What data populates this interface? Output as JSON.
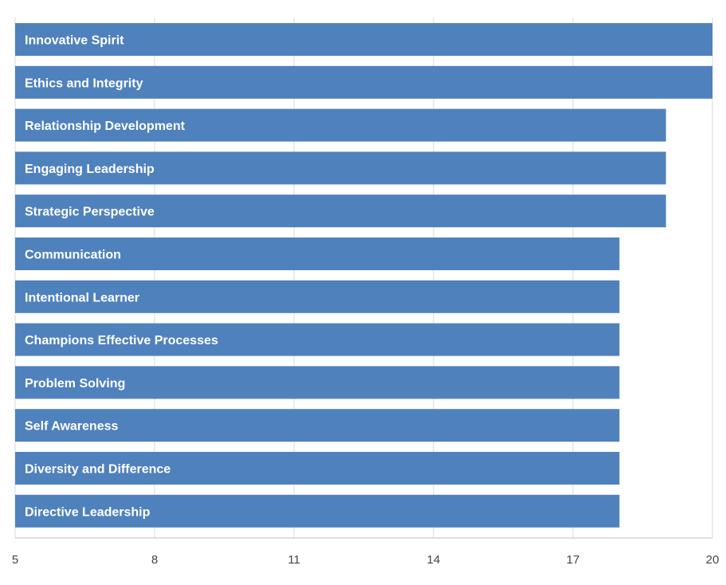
{
  "chart_data": {
    "type": "bar",
    "orientation": "horizontal",
    "categories": [
      "Innovative Spirit",
      "Ethics and Integrity",
      "Relationship Development",
      "Engaging Leadership",
      "Strategic Perspective",
      "Communication",
      "Intentional Learner",
      "Champions Effective Processes",
      "Problem Solving",
      "Self Awareness",
      "Diversity and Difference",
      "Directive Leadership"
    ],
    "values": [
      20,
      20,
      19,
      19,
      19,
      18,
      18,
      18,
      18,
      18,
      18,
      18
    ],
    "xlim": [
      5,
      20
    ],
    "x_ticks": [
      "5",
      "8",
      "11",
      "14",
      "17",
      "20"
    ],
    "bar_color": "#4f81bd",
    "label_color": "#ffffff",
    "grid": true,
    "grid_color": "#d9d9d9",
    "axis_color": "#bfbfbf",
    "title": "",
    "xlabel": "",
    "ylabel": ""
  }
}
